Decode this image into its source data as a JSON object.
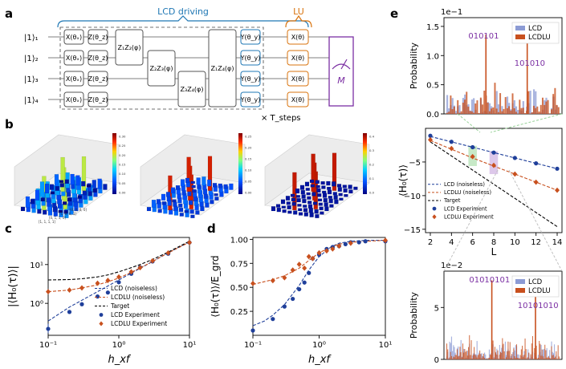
{
  "panel_labels": {
    "a": "a",
    "b": "b",
    "c": "c",
    "d": "d",
    "e": "e"
  },
  "circuit": {
    "lcd_label": "LCD driving",
    "lu_label": "LU",
    "qubits": [
      "|1⟩₁",
      "|1⟩₂",
      "|1⟩₃",
      "|1⟩₄"
    ],
    "gate_x_theta_x": "X(θₓ)",
    "gate_z_theta_z": "Z(θ_z)",
    "gate_y_theta_y": "Y(θ_y)",
    "gate_x_theta": "X(θ)",
    "z1z2": "Z₁Z₂(φ)",
    "z2z3": "Z₂Z₃(φ)",
    "z3z4": "Z₃Z₄(φ)",
    "z1z4": "Z₁Z₄(φ)",
    "measure": "M",
    "steps": "× T_steps"
  },
  "panel_b": {
    "bars1_ticks": [
      "0.30",
      "0.25",
      "0.20",
      "0.15",
      "0.10",
      "0.05",
      "0.00"
    ],
    "bars2_ticks": [
      "0.25",
      "0.20",
      "0.15",
      "0.10",
      "0.05",
      "0.00"
    ],
    "bars3_ticks": [
      "0.4",
      "0.3",
      "0.2",
      "0.1",
      "0.0"
    ],
    "axis_states": [
      "[1, 1, 1, 1]",
      "[0, 1, 1, 0]",
      "[1, 0, 0, 1]",
      "[0, 0, 0, 0]"
    ]
  },
  "colors": {
    "lcd": "#1f3f9a",
    "lcdlu": "#c8501e",
    "target": "#000000",
    "lcd_box": "#1f77b4",
    "lu_box": "#d9730d",
    "measure": "#7b2fa3"
  },
  "chart_data": [
    {
      "id": "c",
      "type": "line",
      "xlabel": "h_xf",
      "ylabel": "|⟨H₀(τ)⟩|",
      "xscale": "log",
      "yscale": "log",
      "xlim": [
        0.1,
        10
      ],
      "ylim": [
        0.15,
        50
      ],
      "x_ticks": [
        "10⁻¹",
        "10⁰",
        "10¹"
      ],
      "y_ticks": [
        "10⁰",
        "10¹"
      ],
      "legend": [
        "LCD (noiseless)",
        "LCDLU (noiseless)",
        "Target",
        "LCD Experiment",
        "LCDLU Experiment"
      ],
      "series": [
        {
          "name": "LCD (noiseless)",
          "style": "dashed-blue",
          "x": [
            0.1,
            0.2,
            0.3,
            0.5,
            0.7,
            1,
            1.5,
            2,
            3,
            5,
            10
          ],
          "y": [
            0.35,
            0.8,
            1.2,
            2.0,
            2.8,
            4.0,
            6.0,
            8.0,
            12,
            20,
            38
          ]
        },
        {
          "name": "LCDLU (noiseless)",
          "style": "dashed-orange",
          "x": [
            0.1,
            0.2,
            0.3,
            0.5,
            0.7,
            1,
            1.5,
            2,
            3,
            5,
            10
          ],
          "y": [
            2.0,
            2.2,
            2.5,
            3.0,
            3.6,
            4.5,
            6.3,
            8.2,
            12,
            20,
            38
          ]
        },
        {
          "name": "Target",
          "style": "dashed-black",
          "x": [
            0.1,
            0.2,
            0.3,
            0.5,
            0.7,
            1,
            1.5,
            2,
            3,
            5,
            10
          ],
          "y": [
            4.0,
            4.1,
            4.3,
            4.8,
            5.4,
            6.5,
            8.3,
            10,
            13.5,
            21,
            40
          ]
        },
        {
          "name": "LCD Experiment",
          "style": "dot-blue",
          "x": [
            0.1,
            0.2,
            0.3,
            0.5,
            0.7,
            1,
            1.5,
            2,
            3,
            5,
            10
          ],
          "y": [
            0.22,
            0.6,
            0.95,
            1.5,
            1.9,
            3.5,
            5.8,
            8.5,
            12,
            19,
            37
          ]
        },
        {
          "name": "LCDLU Experiment",
          "style": "diamond-orange",
          "x": [
            0.1,
            0.2,
            0.3,
            0.5,
            0.7,
            1,
            1.5,
            2,
            3,
            5,
            10
          ],
          "y": [
            2.0,
            2.2,
            2.5,
            3.3,
            3.9,
            4.8,
            6.5,
            8.3,
            12.5,
            20,
            37
          ]
        }
      ]
    },
    {
      "id": "d",
      "type": "line",
      "xlabel": "h_xf",
      "ylabel": "⟨H₀(τ)⟩/E_grd",
      "xscale": "log",
      "xlim": [
        0.1,
        10
      ],
      "ylim": [
        0.0,
        1.0
      ],
      "x_ticks": [
        "10⁻¹",
        "10⁰",
        "10¹"
      ],
      "y_ticks": [
        "0.25",
        "0.50",
        "0.75",
        "1.00"
      ],
      "series": [
        {
          "name": "LCD (noiseless)",
          "style": "dashed-blue",
          "x": [
            0.1,
            0.15,
            0.2,
            0.3,
            0.5,
            0.7,
            1,
            1.5,
            2,
            3,
            5,
            10
          ],
          "y": [
            0.1,
            0.15,
            0.21,
            0.32,
            0.52,
            0.68,
            0.82,
            0.92,
            0.96,
            0.98,
            0.99,
            0.99
          ]
        },
        {
          "name": "LCDLU (noiseless)",
          "style": "dashed-orange",
          "x": [
            0.1,
            0.2,
            0.3,
            0.5,
            0.7,
            1,
            1.5,
            2,
            3,
            5,
            10
          ],
          "y": [
            0.53,
            0.58,
            0.62,
            0.7,
            0.78,
            0.86,
            0.92,
            0.95,
            0.97,
            0.98,
            0.99
          ]
        },
        {
          "name": "LCD Experiment",
          "style": "dot-blue",
          "x": [
            0.1,
            0.2,
            0.3,
            0.4,
            0.5,
            0.6,
            0.7,
            0.8,
            1.0,
            1.3,
            1.6,
            2.0,
            2.5,
            3.0,
            4.0,
            5.0,
            10
          ],
          "y": [
            0.05,
            0.17,
            0.3,
            0.38,
            0.48,
            0.55,
            0.65,
            0.8,
            0.84,
            0.9,
            0.92,
            0.93,
            0.95,
            0.97,
            0.97,
            0.98,
            0.98
          ]
        },
        {
          "name": "LCDLU Experiment",
          "style": "diamond-orange",
          "x": [
            0.1,
            0.2,
            0.3,
            0.4,
            0.5,
            0.6,
            0.7,
            0.8,
            1.0,
            1.3,
            1.6,
            2.0,
            3.0,
            10
          ],
          "y": [
            0.54,
            0.57,
            0.6,
            0.68,
            0.74,
            0.7,
            0.82,
            0.8,
            0.86,
            0.88,
            0.9,
            0.93,
            0.96,
            0.99
          ]
        }
      ]
    },
    {
      "id": "e-top",
      "type": "bar",
      "ylabel": "Probability",
      "scale_label": "1e−1",
      "ylim": [
        0,
        1.65
      ],
      "y_ticks": [
        "0.0",
        "0.5",
        "1.0",
        "1.5"
      ],
      "legend": [
        "LCD",
        "LCDLU"
      ],
      "annotations": [
        "010101",
        "101010"
      ],
      "peaks": [
        {
          "label": "010101",
          "lcdlu": 1.36
        },
        {
          "label": "101010",
          "lcdlu": 1.4
        }
      ]
    },
    {
      "id": "e-mid",
      "type": "line",
      "xlabel": "L",
      "ylabel": "⟨H₀(τ)⟩",
      "xlim": [
        2,
        14
      ],
      "ylim": [
        -15.5,
        0
      ],
      "x_ticks": [
        "2",
        "4",
        "6",
        "8",
        "10",
        "12",
        "14"
      ],
      "y_ticks": [
        "−5",
        "−10",
        "−15"
      ],
      "legend": [
        "LCD (noiseless)",
        "LCDLU (noiseless)",
        "Target",
        "LCD Experiment",
        "LCDLU Experiment"
      ],
      "series": [
        {
          "name": "LCD (noiseless)",
          "style": "dashed-blue",
          "x": [
            2,
            4,
            6,
            8,
            10,
            12,
            14
          ],
          "y": [
            -1.2,
            -2.0,
            -2.8,
            -3.6,
            -4.4,
            -5.2,
            -6.0
          ]
        },
        {
          "name": "LCDLU (noiseless)",
          "style": "dashed-orange",
          "x": [
            2,
            4,
            6,
            8,
            10,
            12,
            14
          ],
          "y": [
            -1.8,
            -3.1,
            -4.4,
            -5.6,
            -6.8,
            -8.0,
            -9.2
          ]
        },
        {
          "name": "Target",
          "style": "dashed-black",
          "x": [
            2,
            14
          ],
          "y": [
            -2.0,
            -14.6
          ]
        },
        {
          "name": "LCD Experiment",
          "style": "dot-blue",
          "x": [
            2,
            4,
            6,
            8,
            10,
            12,
            14
          ],
          "y": [
            -1.1,
            -2.0,
            -2.8,
            -3.6,
            -4.4,
            -5.2,
            -6.0
          ]
        },
        {
          "name": "LCDLU Experiment",
          "style": "diamond-orange",
          "x": [
            2,
            4,
            6,
            8,
            10,
            12,
            14
          ],
          "y": [
            -1.7,
            -3.0,
            -4.2,
            -5.5,
            -6.8,
            -8.0,
            -9.2
          ]
        }
      ]
    },
    {
      "id": "e-bottom",
      "type": "bar",
      "ylabel": "Probability",
      "scale_label": "1e−2",
      "ylim": [
        0,
        8.5
      ],
      "y_ticks": [
        "0",
        "5"
      ],
      "legend": [
        "LCD",
        "LCDLU"
      ],
      "annotations": [
        "01010101",
        "10101010"
      ],
      "peaks": [
        {
          "label": "01010101",
          "lcdlu": 7.6
        },
        {
          "label": "10101010",
          "lcdlu": 7.1
        }
      ]
    }
  ]
}
